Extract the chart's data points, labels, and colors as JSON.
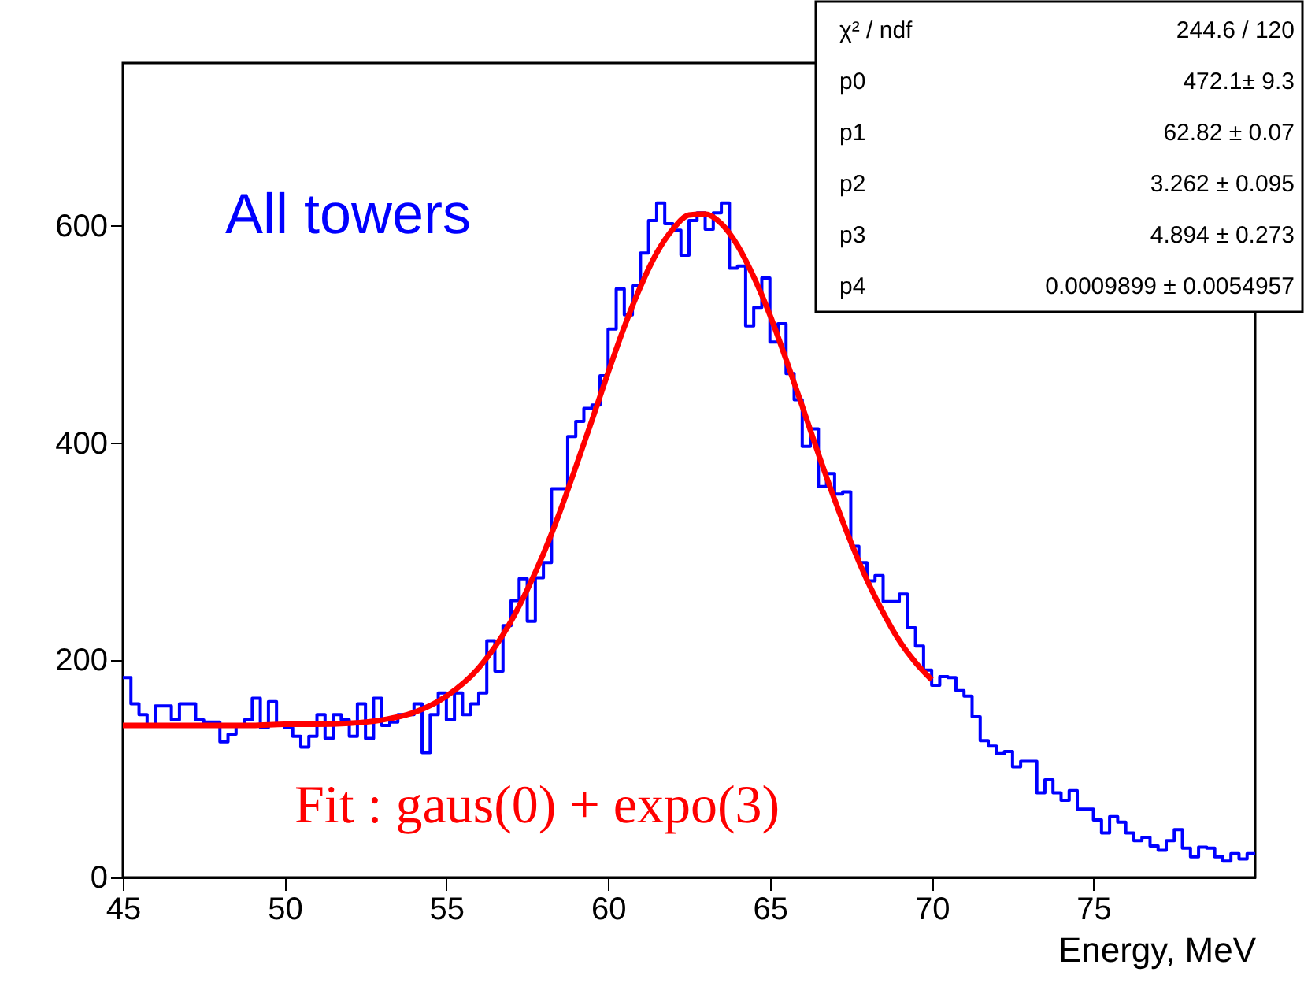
{
  "chart_data": {
    "type": "histogram",
    "xlabel": "Energy, MeV",
    "bins": [
      45,
      45.25,
      45.5,
      45.75,
      46,
      46.25,
      46.5,
      46.75,
      47,
      47.25,
      47.5,
      47.75,
      48,
      48.25,
      48.5,
      48.75,
      49,
      49.25,
      49.5,
      49.75,
      50,
      50.25,
      50.5,
      50.75,
      51,
      51.25,
      51.5,
      51.75,
      52,
      52.25,
      52.5,
      52.75,
      53,
      53.25,
      53.5,
      53.75,
      54,
      54.25,
      54.5,
      54.75,
      55,
      55.25,
      55.5,
      55.75,
      56,
      56.25,
      56.5,
      56.75,
      57,
      57.25,
      57.5,
      57.75,
      58,
      58.25,
      58.5,
      58.75,
      59,
      59.25,
      59.5,
      59.75,
      60,
      60.25,
      60.5,
      60.75,
      61,
      61.25,
      61.5,
      61.75,
      62,
      62.25,
      62.5,
      62.75,
      63,
      63.25,
      63.5,
      63.75,
      64,
      64.25,
      64.5,
      64.75,
      65,
      65.25,
      65.5,
      65.75,
      66,
      66.25,
      66.5,
      66.75,
      67,
      67.25,
      67.5,
      67.75,
      68,
      68.25,
      68.5,
      68.75,
      69,
      69.25,
      69.5,
      69.75,
      70,
      70.25,
      70.5,
      70.75,
      71,
      71.25,
      71.5,
      71.75,
      72,
      72.25,
      72.5,
      72.75,
      73,
      73.25,
      73.5,
      73.75,
      74,
      74.25,
      74.5,
      74.75,
      75,
      75.25,
      75.5,
      75.75,
      76,
      76.25,
      76.5,
      76.75,
      77,
      77.25,
      77.5,
      77.75,
      78,
      78.25,
      78.5,
      78.75,
      79,
      79.25,
      79.5,
      79.75,
      80
    ],
    "series": [
      {
        "color": "#0000ff",
        "values": [
          184,
          160,
          150,
          140,
          158,
          158,
          145,
          160,
          160,
          145,
          143,
          143,
          125,
          132,
          140,
          145,
          165,
          138,
          162,
          140,
          138,
          130,
          120,
          130,
          150,
          128,
          150,
          145,
          130,
          160,
          128,
          165,
          140,
          143,
          150,
          150,
          160,
          115,
          150,
          170,
          145,
          170,
          150,
          160,
          170,
          218,
          190,
          232,
          255,
          275,
          236,
          276,
          290,
          358,
          358,
          406,
          420,
          432,
          435,
          462,
          505,
          542,
          518,
          545,
          575,
          605,
          621,
          602,
          596,
          573,
          605,
          612,
          597,
          612,
          621,
          561,
          563,
          508,
          525,
          552,
          493,
          510,
          464,
          440,
          397,
          413,
          360,
          372,
          353,
          355,
          305,
          290,
          273,
          278,
          254,
          254,
          261,
          230,
          213,
          191,
          177,
          185,
          184,
          172,
          167,
          148,
          126,
          121,
          114,
          116,
          102,
          107,
          107,
          78,
          90,
          78,
          71,
          80,
          63,
          63,
          53,
          41,
          56,
          51,
          41,
          34,
          37,
          29,
          25,
          34,
          44,
          27,
          19,
          28,
          27,
          19,
          15,
          22,
          17,
          22
        ]
      },
      {
        "type": "line",
        "color": "#ff0000",
        "x": [
          45,
          46,
          47,
          48,
          49,
          50,
          51,
          52,
          53,
          54,
          55,
          56,
          57,
          57.5,
          58,
          58.5,
          59,
          59.5,
          60,
          60.5,
          61,
          61.5,
          62,
          62.5,
          63,
          63.5,
          64,
          64.5,
          65,
          65.5,
          66,
          66.5,
          67,
          67.5,
          68,
          68.5,
          69,
          69.5,
          70
        ],
        "values": [
          140,
          140,
          140,
          140,
          140,
          141,
          141,
          142,
          145,
          152,
          167,
          193,
          236,
          265,
          298,
          336,
          378,
          421,
          465,
          507,
          544,
          575,
          597,
          610,
          611,
          602,
          582,
          553,
          518,
          477,
          434,
          390,
          348,
          309,
          274,
          244,
          218,
          198,
          182
        ]
      }
    ],
    "xlim": [
      45,
      80
    ],
    "xticks": [
      45,
      50,
      55,
      60,
      65,
      70,
      75
    ],
    "ylim": [
      0,
      750
    ],
    "yticks": [
      0,
      200,
      400,
      600
    ],
    "grid": false,
    "line_style": "solid",
    "annotations": [
      "All towers",
      "Fit : gaus(0) + expo(3)",
      "χ² / ndf",
      "244.6 / 120",
      "p0",
      "472.1± 9.3",
      "p1",
      "62.82 ± 0.07",
      "p2",
      "3.262 ± 0.095",
      "p3",
      "4.894 ± 0.273",
      "p4",
      "0.0009899 ± 0.0054957"
    ]
  }
}
